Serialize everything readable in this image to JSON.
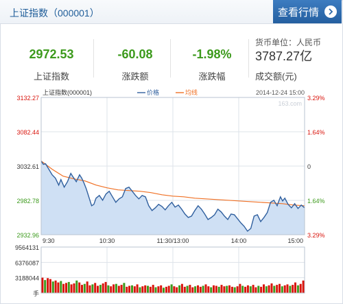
{
  "header": {
    "title": "上证指数（000001）",
    "button_label": "查看行情"
  },
  "stats": {
    "price": "2972.53",
    "price_label": "上证指数",
    "change": "-60.08",
    "change_label": "涨跌额",
    "change_pct": "-1.98%",
    "change_pct_label": "涨跌幅",
    "currency": "货币单位：人民币",
    "turnover": "3787.27亿",
    "turnover_label": "成交额(元)"
  },
  "colors": {
    "up": "#d9140c",
    "down": "#3c9a1c",
    "price_line": "#2f5f9e",
    "avg_line": "#f07024",
    "fill": "#cfe0f4"
  },
  "chart_data": {
    "type": "line",
    "title": "上证指数(000001)",
    "timestamp": "2014-12-24 15:00",
    "watermark": "163.com",
    "legend": [
      "价格",
      "均线"
    ],
    "x_ticks": [
      "9:30",
      "10:30",
      "11:30/13:00",
      "14:00",
      "15:00"
    ],
    "y_ticks_left": [
      "3132.27",
      "3082.44",
      "3032.61",
      "2982.78",
      "2932.96"
    ],
    "y_ticks_right": [
      "3.29%",
      "1.64%",
      "0",
      "1.64%",
      "3.29%"
    ],
    "ylim": [
      2932.96,
      3132.27
    ],
    "base": 3032.61,
    "x_range": [
      0,
      240
    ],
    "price": [
      [
        0,
        3040
      ],
      [
        2,
        3035
      ],
      [
        4,
        3036
      ],
      [
        7,
        3028
      ],
      [
        10,
        3020
      ],
      [
        13,
        3015
      ],
      [
        16,
        3005
      ],
      [
        18,
        3013
      ],
      [
        21,
        3002
      ],
      [
        24,
        3010
      ],
      [
        27,
        3022
      ],
      [
        29,
        3017
      ],
      [
        32,
        3010
      ],
      [
        35,
        3020
      ],
      [
        37,
        3015
      ],
      [
        39,
        3008
      ],
      [
        41,
        3000
      ],
      [
        44,
        2985
      ],
      [
        46,
        2975
      ],
      [
        48,
        2977
      ],
      [
        50,
        2986
      ],
      [
        53,
        2990
      ],
      [
        56,
        2983
      ],
      [
        59,
        2992
      ],
      [
        62,
        2996
      ],
      [
        65,
        2988
      ],
      [
        68,
        2980
      ],
      [
        71,
        2985
      ],
      [
        74,
        2988
      ],
      [
        77,
        3000
      ],
      [
        80,
        3002
      ],
      [
        83,
        2996
      ],
      [
        86,
        2990
      ],
      [
        89,
        2985
      ],
      [
        92,
        2990
      ],
      [
        95,
        2988
      ],
      [
        98,
        2975
      ],
      [
        101,
        2968
      ],
      [
        104,
        2972
      ],
      [
        107,
        2977
      ],
      [
        110,
        2974
      ],
      [
        113,
        2969
      ],
      [
        116,
        2975
      ],
      [
        119,
        2980
      ],
      [
        122,
        2973
      ],
      [
        125,
        2976
      ],
      [
        128,
        2970
      ],
      [
        131,
        2963
      ],
      [
        134,
        2958
      ],
      [
        137,
        2960
      ],
      [
        140,
        2968
      ],
      [
        143,
        2975
      ],
      [
        146,
        2970
      ],
      [
        149,
        2963
      ],
      [
        152,
        2955
      ],
      [
        155,
        2958
      ],
      [
        158,
        2962
      ],
      [
        161,
        2970
      ],
      [
        164,
        2966
      ],
      [
        167,
        2960
      ],
      [
        170,
        2955
      ],
      [
        173,
        2963
      ],
      [
        176,
        2962
      ],
      [
        179,
        2956
      ],
      [
        182,
        2950
      ],
      [
        185,
        2945
      ],
      [
        188,
        2938
      ],
      [
        191,
        2942
      ],
      [
        194,
        2960
      ],
      [
        197,
        2962
      ],
      [
        200,
        2952
      ],
      [
        203,
        2958
      ],
      [
        206,
        2965
      ],
      [
        209,
        2980
      ],
      [
        212,
        2983
      ],
      [
        215,
        2975
      ],
      [
        218,
        2988
      ],
      [
        220,
        2982
      ],
      [
        222,
        2986
      ],
      [
        225,
        2977
      ],
      [
        228,
        2972
      ],
      [
        231,
        2978
      ],
      [
        234,
        2971
      ],
      [
        237,
        2976
      ],
      [
        240,
        2972
      ]
    ],
    "avg": [
      [
        0,
        3040
      ],
      [
        10,
        3028
      ],
      [
        20,
        3018
      ],
      [
        30,
        3014
      ],
      [
        40,
        3011
      ],
      [
        50,
        3005
      ],
      [
        60,
        3001
      ],
      [
        70,
        2998
      ],
      [
        80,
        2997
      ],
      [
        90,
        2996
      ],
      [
        100,
        2994
      ],
      [
        110,
        2991
      ],
      [
        120,
        2989
      ],
      [
        130,
        2988
      ],
      [
        140,
        2986
      ],
      [
        150,
        2985
      ],
      [
        160,
        2984
      ],
      [
        170,
        2983
      ],
      [
        180,
        2982
      ],
      [
        190,
        2981
      ],
      [
        200,
        2980
      ],
      [
        210,
        2979
      ],
      [
        220,
        2978
      ],
      [
        230,
        2976
      ],
      [
        240,
        2975
      ]
    ],
    "volume_ticks": [
      "9564131",
      "6376087",
      "3188044",
      "手"
    ],
    "volume_max": 9564131,
    "volume": [
      3200000,
      2700000,
      3100000,
      2900000,
      2400000,
      2600000,
      2200000,
      2500000,
      1900000,
      2100000,
      2300000,
      1800000,
      2000000,
      2600000,
      2200000,
      1700000,
      1900000,
      2400000,
      1600000,
      1800000,
      2100000,
      1500000,
      1700000,
      2000000,
      2300000,
      1600000,
      1400000,
      1800000,
      1900000,
      1500000,
      1700000,
      2100000,
      1300000,
      1500000,
      1600000,
      1400000,
      1800000,
      1200000,
      1400000,
      1600000,
      1500000,
      1300000,
      1700000,
      1200000,
      1400000,
      1600000,
      1100000,
      1300000,
      1500000,
      1800000,
      1400000,
      1200000,
      1600000,
      1900000,
      1300000,
      1500000,
      1700000,
      1200000,
      1400000,
      1600000,
      1300000,
      1500000,
      1800000,
      1400000,
      1200000,
      1600000,
      1500000,
      1300000,
      1700000,
      1400000,
      1500000,
      1600000,
      1300000,
      1200000,
      1400000,
      1900000,
      1500000,
      1300000,
      1600000,
      1400000,
      1700000,
      1200000,
      1500000,
      1300000,
      1800000,
      1400000,
      1600000,
      2000000,
      1500000,
      1700000,
      1900000,
      1400000,
      1600000,
      1800000,
      1500000,
      1700000,
      2200000,
      1600000,
      1900000,
      2600000
    ]
  }
}
